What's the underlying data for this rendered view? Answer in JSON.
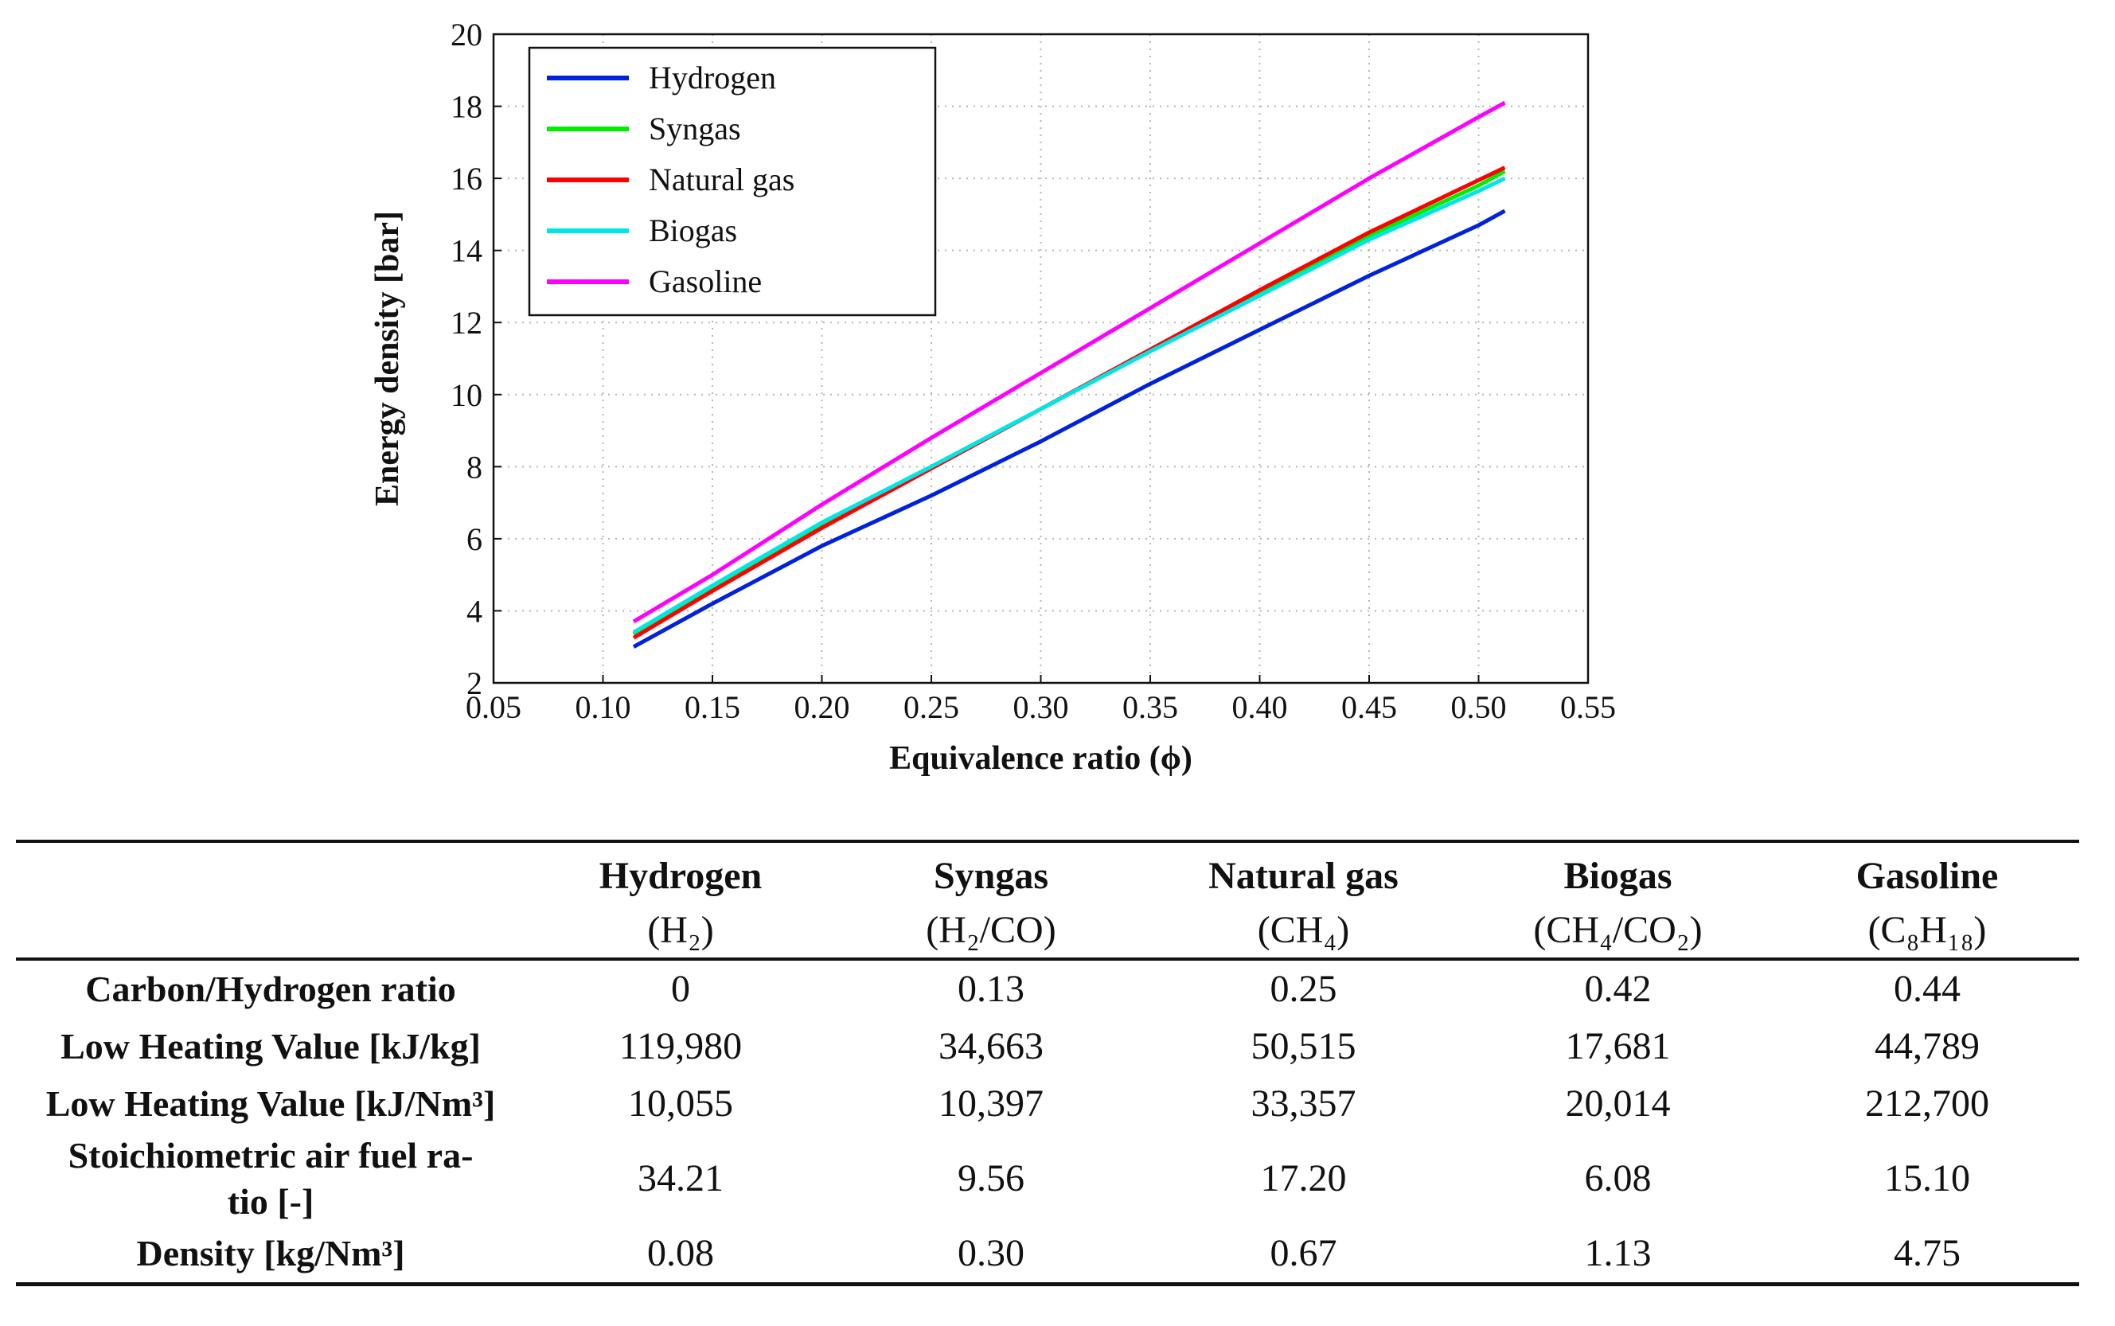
{
  "chart_data": {
    "type": "line",
    "title": "",
    "xlabel": "Equivalence ratio (ϕ)",
    "ylabel": "Energy density [bar]",
    "xlim": [
      0.05,
      0.55
    ],
    "ylim": [
      2,
      20
    ],
    "xticks": [
      "0.05",
      "0.10",
      "0.15",
      "0.20",
      "0.25",
      "0.30",
      "0.35",
      "0.40",
      "0.45",
      "0.50",
      "0.55"
    ],
    "yticks": [
      "2",
      "4",
      "6",
      "8",
      "10",
      "12",
      "14",
      "16",
      "18",
      "20"
    ],
    "grid": true,
    "legend_position": "top-left",
    "x": [
      0.114,
      0.15,
      0.2,
      0.25,
      0.3,
      0.35,
      0.4,
      0.45,
      0.5,
      0.512
    ],
    "series": [
      {
        "name": "Hydrogen",
        "color": "#0022dd",
        "values": [
          3.0,
          4.2,
          5.8,
          7.2,
          8.7,
          10.3,
          11.8,
          13.3,
          14.7,
          15.1
        ]
      },
      {
        "name": "Syngas",
        "color": "#00ee00",
        "values": [
          3.35,
          4.65,
          6.4,
          8.0,
          9.6,
          11.2,
          12.8,
          14.4,
          15.8,
          16.2
        ]
      },
      {
        "name": "Natural gas",
        "color": "#ff0000",
        "values": [
          3.25,
          4.55,
          6.3,
          7.95,
          9.6,
          11.25,
          12.9,
          14.5,
          15.95,
          16.3
        ]
      },
      {
        "name": "Biogas",
        "color": "#00e5e5",
        "values": [
          3.4,
          4.7,
          6.45,
          8.0,
          9.6,
          11.2,
          12.75,
          14.3,
          15.65,
          16.0
        ]
      },
      {
        "name": "Gasoline",
        "color": "#ff00ff",
        "values": [
          3.7,
          5.0,
          6.95,
          8.8,
          10.6,
          12.4,
          14.2,
          16.0,
          17.7,
          18.1
        ]
      }
    ]
  },
  "table": {
    "columns": [
      {
        "name": "Hydrogen",
        "formula": "(H₂)"
      },
      {
        "name": "Syngas",
        "formula": "(H₂/CO)"
      },
      {
        "name": "Natural gas",
        "formula": "(CH₄)"
      },
      {
        "name": "Biogas",
        "formula": "(CH₄/CO₂)"
      },
      {
        "name": "Gasoline",
        "formula": "(C₈H₁₈)"
      }
    ],
    "rows": [
      {
        "label": "Carbon/Hydrogen ratio",
        "values": [
          "0",
          "0.13",
          "0.25",
          "0.42",
          "0.44"
        ]
      },
      {
        "label": "Low Heating Value [kJ/kg]",
        "values": [
          "119,980",
          "34,663",
          "50,515",
          "17,681",
          "44,789"
        ]
      },
      {
        "label": "Low Heating Value [kJ/Nm³]",
        "values": [
          "10,055",
          "10,397",
          "33,357",
          "20,014",
          "212,700"
        ]
      },
      {
        "label": "Stoichiometric air fuel ra-\ntio [-]",
        "values": [
          "34.21",
          "9.56",
          "17.20",
          "6.08",
          "15.10"
        ]
      },
      {
        "label": "Density [kg/Nm³]",
        "values": [
          "0.08",
          "0.30",
          "0.67",
          "1.13",
          "4.75"
        ]
      }
    ]
  }
}
